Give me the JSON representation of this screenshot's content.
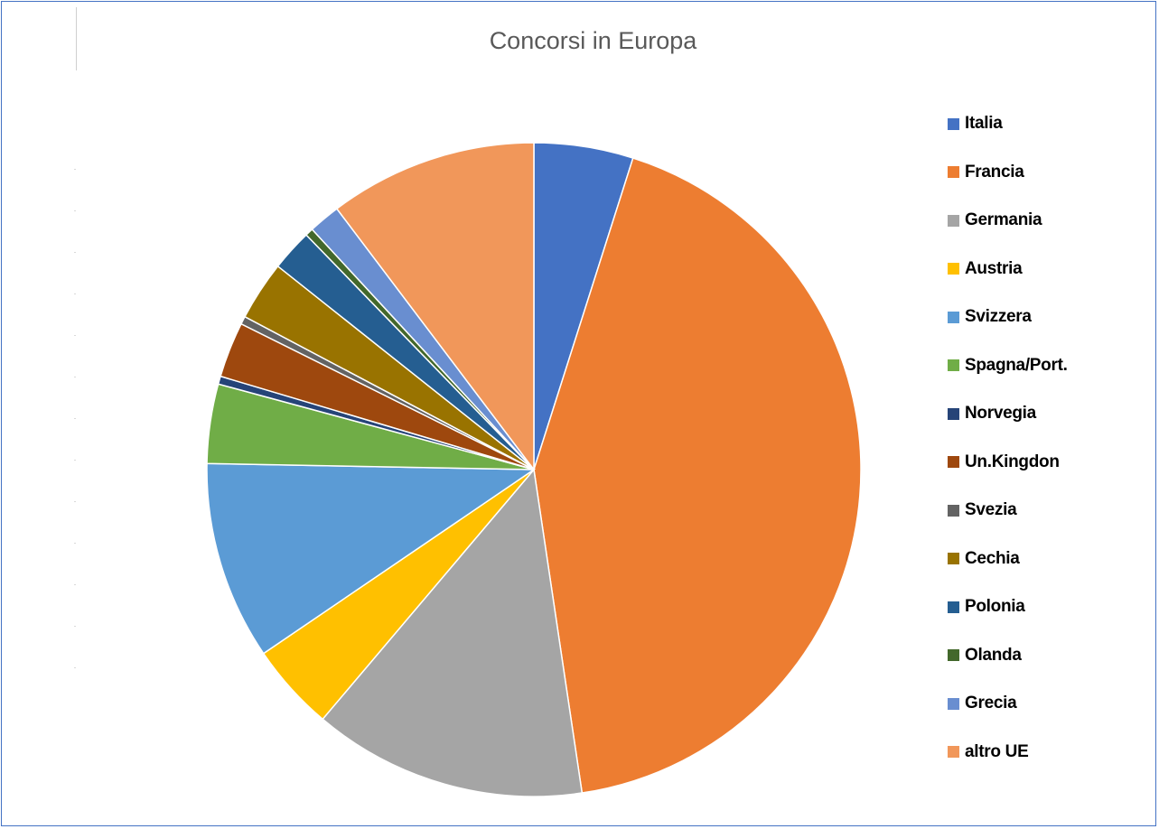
{
  "chart_data": {
    "type": "pie",
    "title": "Concorsi in Europa",
    "legend_position": "right",
    "slices": [
      {
        "label": "Italia",
        "value": 5.0,
        "color": "#4472c4"
      },
      {
        "label": "Francia",
        "value": 43.6,
        "color": "#ed7d31"
      },
      {
        "label": "Germania",
        "value": 13.8,
        "color": "#a5a5a5"
      },
      {
        "label": "Austria",
        "value": 4.4,
        "color": "#ffc000"
      },
      {
        "label": "Svizzera",
        "value": 10.0,
        "color": "#5b9bd5"
      },
      {
        "label": "Spagna/Port.",
        "value": 4.0,
        "color": "#70ad47"
      },
      {
        "label": "Norvegia",
        "value": 0.4,
        "color": "#264478"
      },
      {
        "label": "Un.Kingdon",
        "value": 2.8,
        "color": "#9e480e"
      },
      {
        "label": "Svezia",
        "value": 0.4,
        "color": "#636363"
      },
      {
        "label": "Cechia",
        "value": 3.0,
        "color": "#997300"
      },
      {
        "label": "Polonia",
        "value": 2.1,
        "color": "#255e91"
      },
      {
        "label": "Olanda",
        "value": 0.4,
        "color": "#43682b"
      },
      {
        "label": "Grecia",
        "value": 1.6,
        "color": "#698ed0"
      },
      {
        "label": "altro UE",
        "value": 10.5,
        "color": "#f1975a"
      }
    ]
  }
}
